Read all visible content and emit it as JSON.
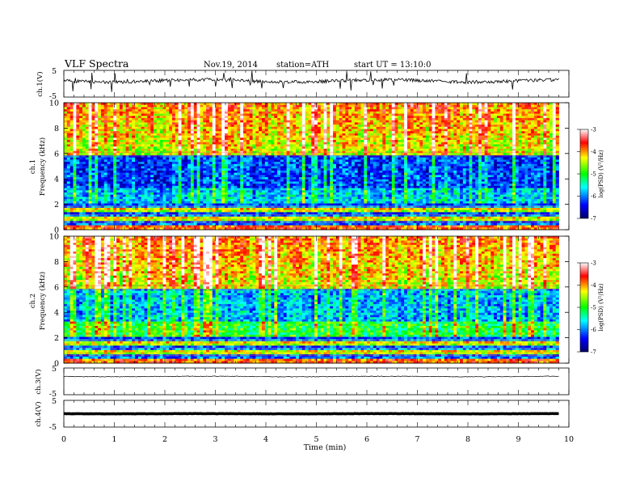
{
  "header": {
    "title": "VLF  Spectra",
    "date": "Nov.19, 2014",
    "station": "station=ATH",
    "start": "start  UT  =   13:10:0"
  },
  "chart_data": {
    "type": "heatmap",
    "x_axis": {
      "label": "Time  (min)",
      "range": [
        0,
        10
      ],
      "ticks": [
        "0",
        "1",
        "2",
        "3",
        "4",
        "5",
        "6",
        "7",
        "8",
        "9",
        "10"
      ]
    },
    "panels": [
      {
        "kind": "waveform",
        "ylabel": "ch.1(V)",
        "ylim": [
          -5,
          5
        ],
        "tick_labels": [
          "5",
          "-5"
        ]
      },
      {
        "kind": "spectrogram",
        "ylabel_top": "ch.1",
        "ylabel": "Frequency  (kHz)",
        "ylim": [
          0,
          10
        ],
        "tick_labels": [
          "10",
          "8",
          "6",
          "4",
          "2",
          "0"
        ],
        "colorbar": {
          "label": "log(PSD) (V²/Hz)",
          "range": [
            -7,
            -3
          ],
          "tick_labels": [
            "-3",
            "-4",
            "-5",
            "-6",
            "-7"
          ]
        }
      },
      {
        "kind": "spectrogram",
        "ylabel_top": "ch.2",
        "ylabel": "Frequency  (kHz)",
        "ylim": [
          0,
          10
        ],
        "tick_labels": [
          "10",
          "8",
          "6",
          "4",
          "2",
          "0"
        ],
        "colorbar": {
          "label": "log(PSD) (V²/Hz)",
          "range": [
            -7,
            -3
          ],
          "tick_labels": [
            "-3",
            "-4",
            "-5",
            "-6",
            "-7"
          ]
        }
      },
      {
        "kind": "waveform",
        "ylabel": "ch.3(V)",
        "ylim": [
          -5,
          5
        ],
        "tick_labels": [
          "5",
          "-5"
        ]
      },
      {
        "kind": "waveform",
        "ylabel": "ch.4(V)",
        "ylim": [
          -5,
          5
        ],
        "tick_labels": [
          "5",
          "-5"
        ]
      }
    ],
    "data_end_min": 9.8,
    "colorscale": [
      "#000066",
      "#0000ff",
      "#00ffff",
      "#00ff00",
      "#ffff00",
      "#ff0000",
      "#ffffff"
    ]
  }
}
